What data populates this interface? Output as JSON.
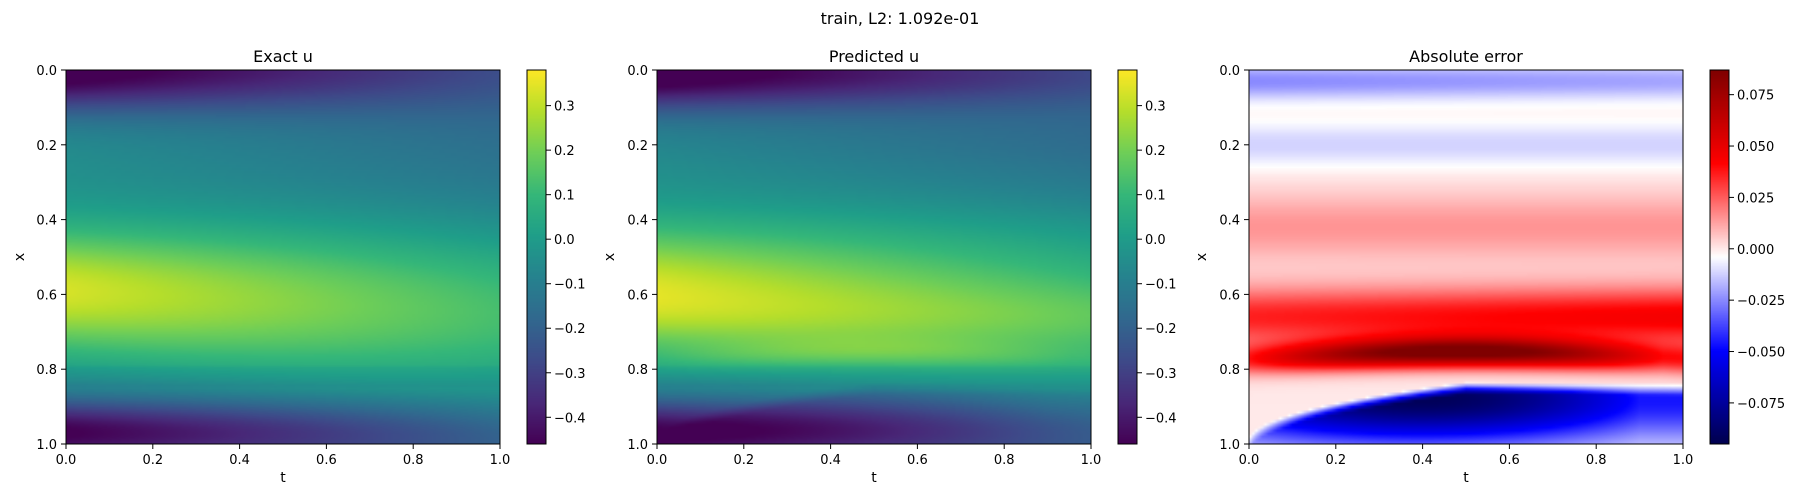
{
  "suptitle": "train, L2: 1.092e-01",
  "chart_data": [
    {
      "type": "heatmap",
      "title": "Exact u",
      "xlabel": "t",
      "ylabel": "x",
      "xlim": [
        0.0,
        1.0
      ],
      "ylim": [
        0.0,
        1.0
      ],
      "y_inverted": true,
      "colormap": "viridis",
      "colorbar_range": [
        -0.46,
        0.38
      ],
      "xticks": [
        "0.0",
        "0.2",
        "0.4",
        "0.6",
        "0.8",
        "1.0"
      ],
      "yticks": [
        "0.0",
        "0.2",
        "0.4",
        "0.6",
        "0.8",
        "1.0"
      ],
      "colorbar_ticks": [
        {
          "value": 0.3,
          "label": "0.3"
        },
        {
          "value": 0.2,
          "label": "0.2"
        },
        {
          "value": 0.1,
          "label": "0.1"
        },
        {
          "value": 0.0,
          "label": "0.0"
        },
        {
          "value": -0.1,
          "label": "−0.1"
        },
        {
          "value": -0.2,
          "label": "−0.2"
        },
        {
          "value": -0.3,
          "label": "−0.3"
        },
        {
          "value": -0.4,
          "label": "−0.4"
        }
      ],
      "field": "exact"
    },
    {
      "type": "heatmap",
      "title": "Predicted u",
      "xlabel": "t",
      "ylabel": "x",
      "xlim": [
        0.0,
        1.0
      ],
      "ylim": [
        0.0,
        1.0
      ],
      "y_inverted": true,
      "colormap": "viridis",
      "colorbar_range": [
        -0.46,
        0.38
      ],
      "xticks": [
        "0.0",
        "0.2",
        "0.4",
        "0.6",
        "0.8",
        "1.0"
      ],
      "yticks": [
        "0.0",
        "0.2",
        "0.4",
        "0.6",
        "0.8",
        "1.0"
      ],
      "colorbar_ticks": [
        {
          "value": 0.3,
          "label": "0.3"
        },
        {
          "value": 0.2,
          "label": "0.2"
        },
        {
          "value": 0.1,
          "label": "0.1"
        },
        {
          "value": 0.0,
          "label": "0.0"
        },
        {
          "value": -0.1,
          "label": "−0.1"
        },
        {
          "value": -0.2,
          "label": "−0.2"
        },
        {
          "value": -0.3,
          "label": "−0.3"
        },
        {
          "value": -0.4,
          "label": "−0.4"
        }
      ],
      "field": "predicted"
    },
    {
      "type": "heatmap",
      "title": "Absolute error",
      "xlabel": "t",
      "ylabel": "x",
      "xlim": [
        0.0,
        1.0
      ],
      "ylim": [
        0.0,
        1.0
      ],
      "y_inverted": true,
      "colormap": "seismic",
      "colorbar_range": [
        -0.095,
        0.087
      ],
      "xticks": [
        "0.0",
        "0.2",
        "0.4",
        "0.6",
        "0.8",
        "1.0"
      ],
      "yticks": [
        "0.0",
        "0.2",
        "0.4",
        "0.6",
        "0.8",
        "1.0"
      ],
      "colorbar_ticks": [
        {
          "value": 0.075,
          "label": "0.075"
        },
        {
          "value": 0.05,
          "label": "0.050"
        },
        {
          "value": 0.025,
          "label": "0.025"
        },
        {
          "value": 0.0,
          "label": "0.000"
        },
        {
          "value": -0.025,
          "label": "−0.025"
        },
        {
          "value": -0.05,
          "label": "−0.050"
        },
        {
          "value": -0.075,
          "label": "−0.075"
        }
      ],
      "field": "error"
    }
  ]
}
